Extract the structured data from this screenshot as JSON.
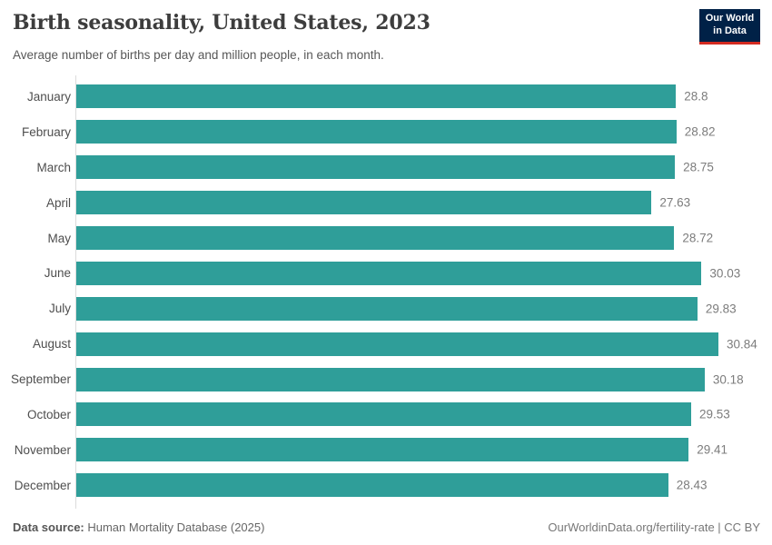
{
  "header": {
    "title": "Birth seasonality, United States, 2023",
    "subtitle": "Average number of births per day and million people, in each month."
  },
  "logo": {
    "line1": "Our World",
    "line2": "in Data",
    "bg_color": "#002147",
    "accent_color": "#d42b21"
  },
  "chart_data": {
    "type": "bar",
    "orientation": "horizontal",
    "title": "Birth seasonality, United States, 2023",
    "subtitle": "Average number of births per day and million people, in each month.",
    "xlabel": "",
    "ylabel": "",
    "categories": [
      "January",
      "February",
      "March",
      "April",
      "May",
      "June",
      "July",
      "August",
      "September",
      "October",
      "November",
      "December"
    ],
    "values": [
      28.8,
      28.82,
      28.75,
      27.63,
      28.72,
      30.03,
      29.83,
      30.84,
      30.18,
      29.53,
      29.41,
      28.43
    ],
    "value_labels": [
      "28.8",
      "28.82",
      "28.75",
      "27.63",
      "28.72",
      "30.03",
      "29.83",
      "30.84",
      "30.18",
      "29.53",
      "29.41",
      "28.43"
    ],
    "xlim": [
      0,
      30.84
    ],
    "grid": false,
    "legend": "none",
    "bar_color": "#2f9e99",
    "axis_color": "#dcdcdc"
  },
  "footer": {
    "source_label": "Data source:",
    "source_text": " Human Mortality Database (2025)",
    "credit": "OurWorldinData.org/fertility-rate | CC BY"
  }
}
